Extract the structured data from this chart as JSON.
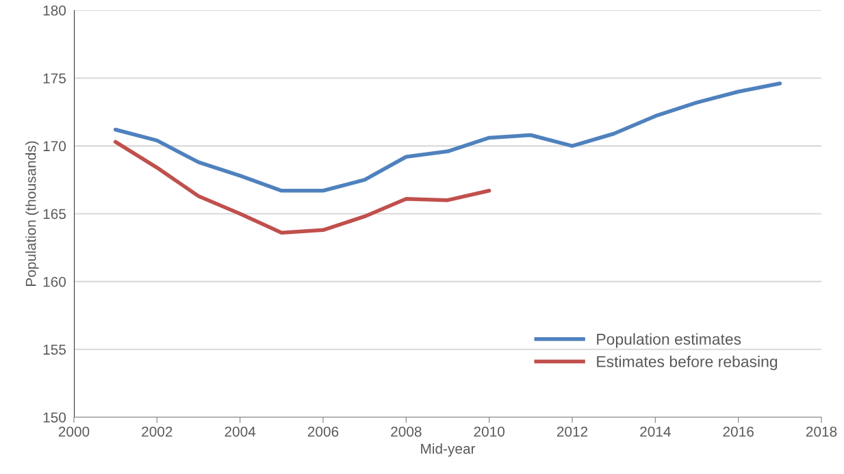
{
  "chart_data": {
    "type": "line",
    "xlabel": "Mid-year",
    "ylabel": "Population (thousands)",
    "x": [
      2001,
      2002,
      2003,
      2004,
      2005,
      2006,
      2007,
      2008,
      2009,
      2010,
      2011,
      2012,
      2013,
      2014,
      2015,
      2016,
      2017
    ],
    "series": [
      {
        "name": "Population estimates",
        "color": "#4f81bd",
        "values": [
          171.2,
          170.4,
          168.8,
          167.8,
          166.7,
          166.7,
          167.5,
          169.2,
          169.6,
          170.6,
          170.8,
          170.0,
          170.9,
          172.2,
          173.2,
          174.0,
          174.6
        ]
      },
      {
        "name": "Estimates before rebasing",
        "color": "#c0504d",
        "values": [
          170.3,
          168.4,
          166.3,
          165.0,
          163.6,
          163.8,
          164.8,
          166.1,
          166.0,
          166.7,
          null,
          null,
          null,
          null,
          null,
          null,
          null
        ]
      }
    ],
    "xlim": [
      2000,
      2018
    ],
    "xticks": [
      2000,
      2002,
      2004,
      2006,
      2008,
      2010,
      2012,
      2014,
      2016,
      2018
    ],
    "ylim": [
      150,
      180
    ],
    "yticks": [
      150,
      155,
      160,
      165,
      170,
      175,
      180
    ],
    "grid": "y",
    "legend": "lower right",
    "marker": "none",
    "line_style": "solid"
  }
}
